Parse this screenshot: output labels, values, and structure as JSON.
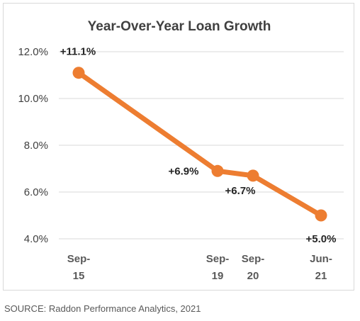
{
  "chart_data": {
    "type": "line",
    "title": "Year-Over-Year Loan Growth",
    "xlabel": "",
    "ylabel": "",
    "ylim": [
      4.0,
      12.0
    ],
    "yticks": [
      "12.0%",
      "10.0%",
      "8.0%",
      "6.0%",
      "4.0%"
    ],
    "categories": [
      "Sep-15",
      "Sep-19",
      "Sep-20",
      "Jun-21"
    ],
    "category_labels": [
      [
        "Sep-",
        "15"
      ],
      [
        "Sep-",
        "19"
      ],
      [
        "Sep-",
        "20"
      ],
      [
        "Jun-",
        "21"
      ]
    ],
    "values": [
      11.1,
      6.9,
      6.7,
      5.0
    ],
    "data_labels": [
      "+11.1%",
      "+6.9%",
      "+6.7%",
      "+5.0%"
    ],
    "grid": true,
    "legend": "none",
    "line_color": "#ed7d31"
  },
  "source": "SOURCE: Raddon Performance Analytics, 2021"
}
